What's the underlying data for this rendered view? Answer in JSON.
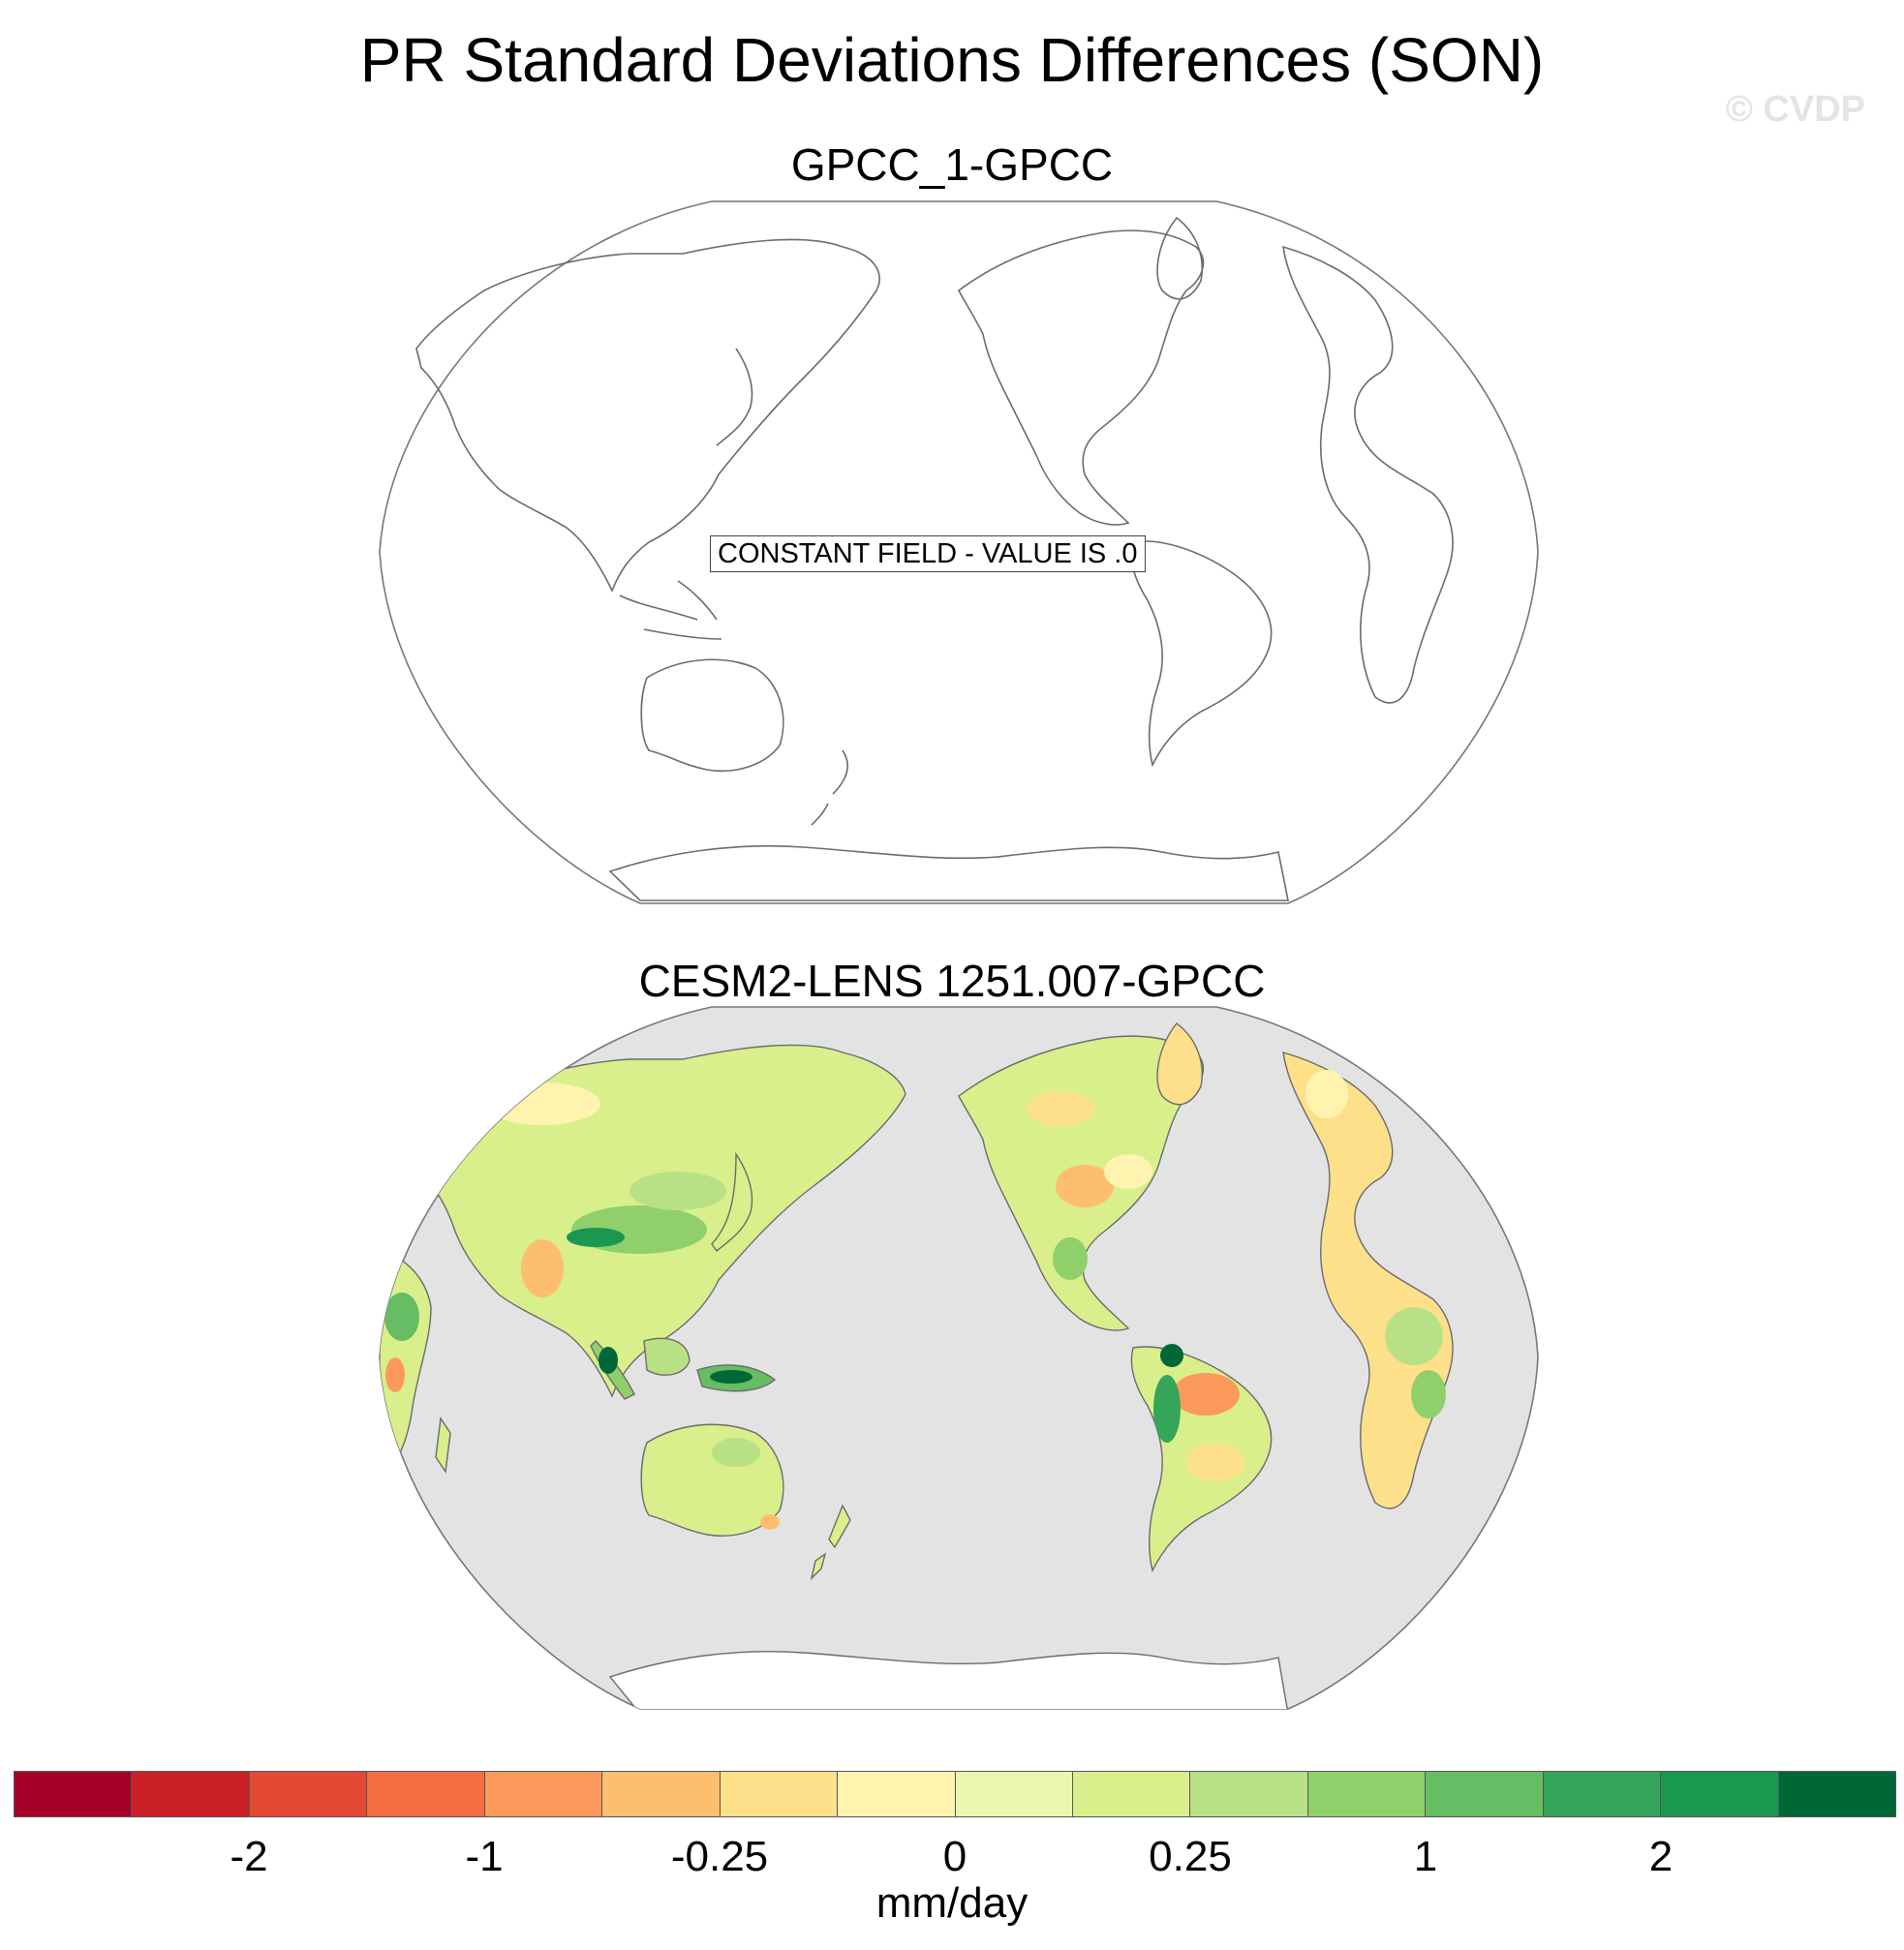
{
  "title": "PR Standard Deviations Differences (SON)",
  "watermark": "© CVDP",
  "panels": [
    {
      "title": "GPCC_1-GPCC",
      "note": "CONSTANT FIELD - VALUE IS .0",
      "field": "constant"
    },
    {
      "title": "CESM2-LENS 1251.007-GPCC",
      "field": "difference"
    }
  ],
  "colorbar": {
    "colors": [
      "#a50026",
      "#cb2027",
      "#e34a33",
      "#f46d43",
      "#fb9a5a",
      "#fdbf6f",
      "#fee08b",
      "#fff3b0",
      "#ebf7b0",
      "#d9ef8b",
      "#b8e186",
      "#8fd06a",
      "#66bd63",
      "#35a55a",
      "#1a9850",
      "#006837"
    ],
    "tick_labels": [
      "-2",
      "-1",
      "-0.25",
      "0",
      "0.25",
      "1",
      "2"
    ],
    "units": "mm/day"
  },
  "map_colors": {
    "ocean": "#e3e3e3",
    "coast": "#6b6b6b",
    "missing_land": "#ffffff"
  }
}
